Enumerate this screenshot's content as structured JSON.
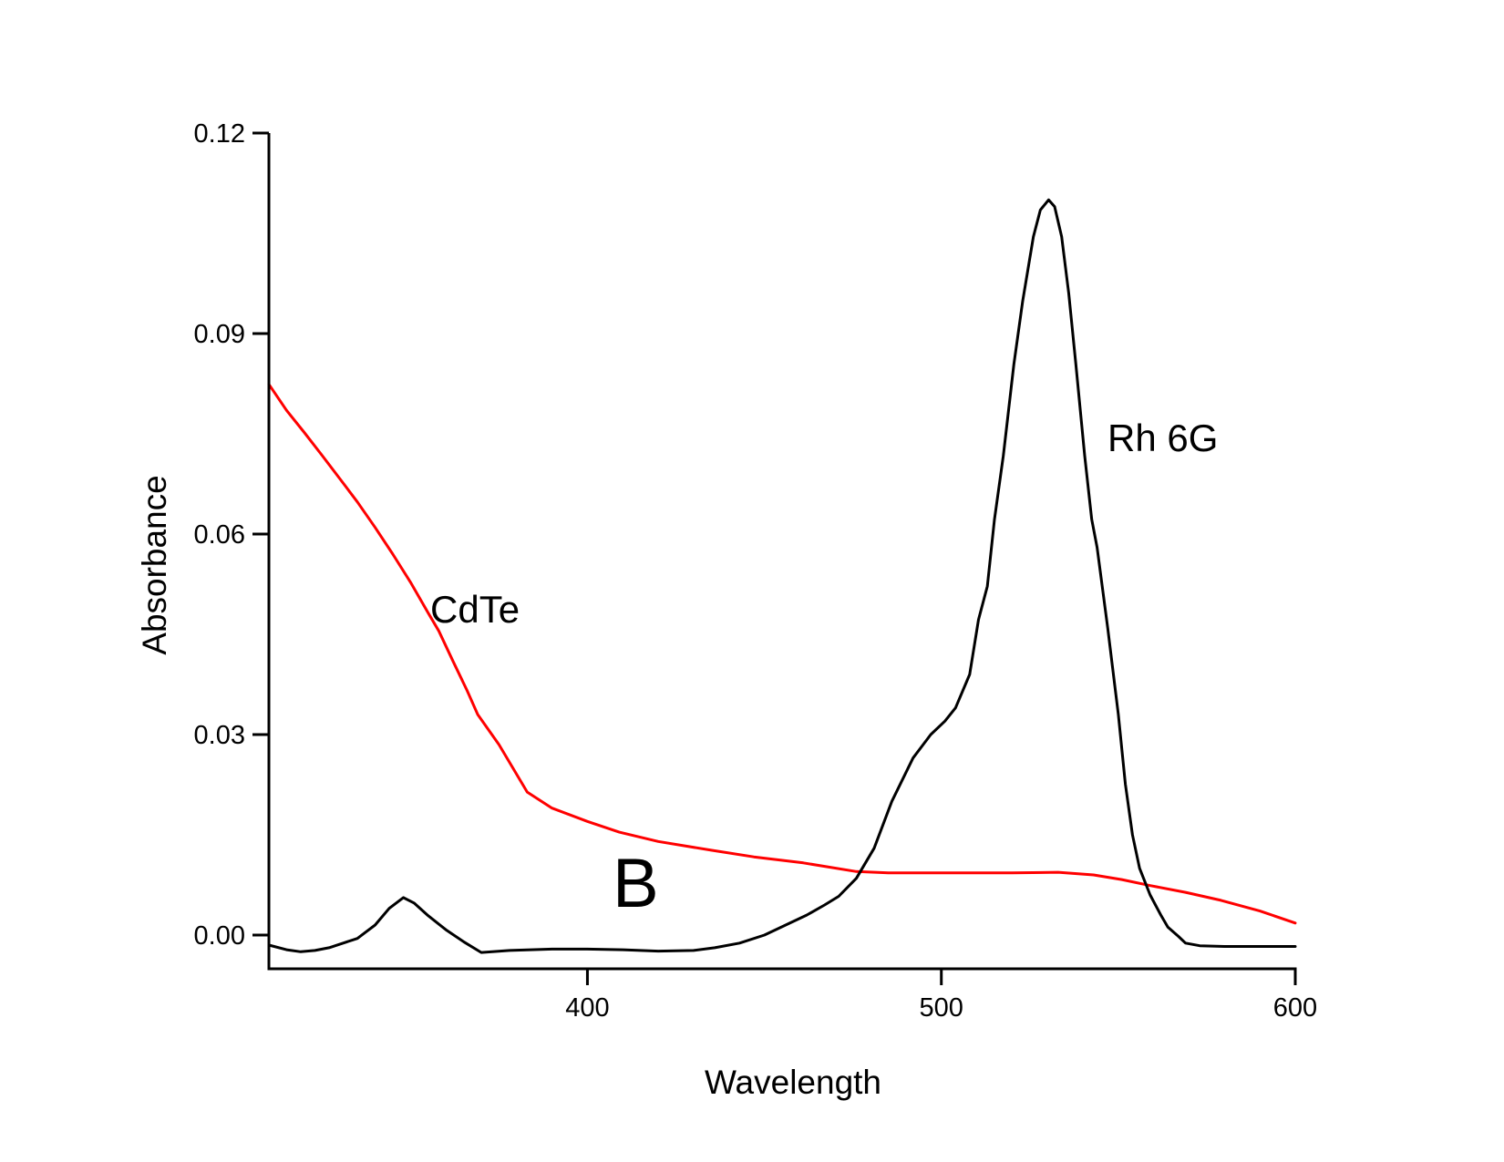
{
  "chart_data": {
    "type": "line",
    "title": "",
    "panel_label": "B",
    "xlabel": "Wavelength",
    "ylabel": "Absorbance",
    "xlim": [
      310,
      600
    ],
    "ylim": [
      -0.005,
      0.12
    ],
    "xticks": [
      400,
      500,
      600
    ],
    "xtick_labels": [
      "400",
      "500",
      "600"
    ],
    "yticks": [
      0.0,
      0.03,
      0.06,
      0.09,
      0.12
    ],
    "ytick_labels": [
      "0.00",
      "0.03",
      "0.06",
      "0.09",
      "0.12"
    ],
    "grid": false,
    "legend": null,
    "annotations": [
      {
        "text": "CdTe",
        "x": 354,
        "y": 0.046,
        "series": "CdTe"
      },
      {
        "text": "Rh 6G",
        "x": 545,
        "y": 0.072,
        "series": "Rh 6G"
      }
    ],
    "series": [
      {
        "name": "CdTe",
        "color": "#ff0000",
        "x": [
          310,
          315,
          320,
          325,
          330,
          335,
          340,
          345,
          350,
          355,
          358,
          362,
          366,
          369,
          375,
          383,
          390,
          400,
          409,
          420,
          435,
          447,
          461,
          476,
          485,
          497,
          510,
          520,
          533,
          543,
          551,
          559,
          569,
          579,
          590,
          600
        ],
        "y": [
          0.0824,
          0.0785,
          0.0752,
          0.0718,
          0.0683,
          0.0648,
          0.061,
          0.057,
          0.0528,
          0.0482,
          0.0455,
          0.041,
          0.0366,
          0.033,
          0.0285,
          0.0214,
          0.019,
          0.017,
          0.0154,
          0.014,
          0.0127,
          0.0117,
          0.0108,
          0.0095,
          0.0093,
          0.0093,
          0.0093,
          0.0093,
          0.0094,
          0.009,
          0.0083,
          0.0074,
          0.0064,
          0.0052,
          0.0036,
          0.0018
        ]
      },
      {
        "name": "Rh 6G",
        "color": "#000000",
        "x": [
          310,
          315,
          319,
          323,
          327,
          331,
          335,
          337,
          340,
          344,
          348,
          351,
          355,
          360,
          365,
          370,
          378,
          390,
          400,
          410,
          420,
          430,
          436,
          443,
          450,
          456,
          462,
          467,
          471,
          476,
          481,
          486,
          492,
          497,
          501,
          504,
          508,
          510.5,
          513,
          515,
          517.5,
          520.5,
          523,
          526,
          528,
          530.3,
          532,
          534,
          536,
          538,
          540.5,
          542.5,
          544,
          547,
          550,
          552,
          554,
          556,
          559,
          562,
          564,
          567,
          569,
          573,
          580,
          590,
          600
        ],
        "y": [
          -0.0015,
          -0.0022,
          -0.0025,
          -0.0023,
          -0.0019,
          -0.0012,
          -0.0005,
          0.0003,
          0.0015,
          0.004,
          0.0056,
          0.0048,
          0.0029,
          0.0008,
          -0.001,
          -0.0026,
          -0.0023,
          -0.0021,
          -0.0021,
          -0.0022,
          -0.0024,
          -0.0023,
          -0.0019,
          -0.0012,
          0.0,
          0.0015,
          0.003,
          0.0045,
          0.0058,
          0.0085,
          0.013,
          0.02,
          0.0265,
          0.03,
          0.032,
          0.034,
          0.039,
          0.0472,
          0.0522,
          0.0622,
          0.0717,
          0.0854,
          0.0949,
          0.1045,
          0.1085,
          0.11,
          0.109,
          0.1045,
          0.096,
          0.0854,
          0.0717,
          0.0622,
          0.058,
          0.046,
          0.033,
          0.0226,
          0.015,
          0.01,
          0.006,
          0.003,
          0.0012,
          -0.0002,
          -0.0012,
          -0.0016,
          -0.0017,
          -0.0017,
          -0.0017
        ]
      }
    ]
  }
}
